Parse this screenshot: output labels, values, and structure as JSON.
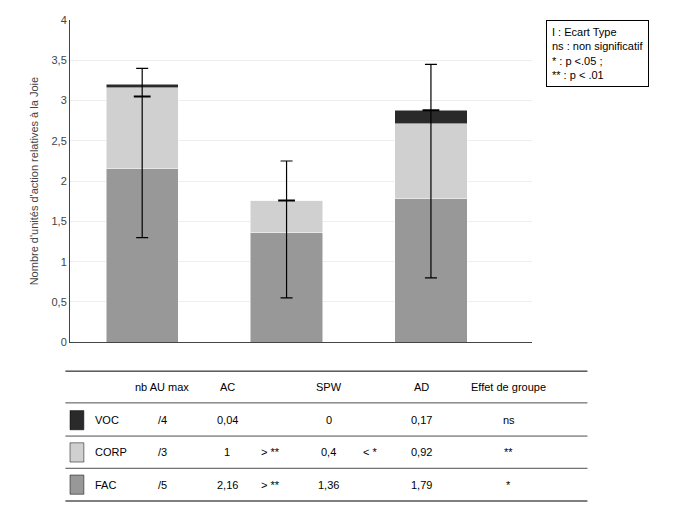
{
  "chart_data": {
    "type": "bar",
    "stacked": true,
    "categories": [
      "AC",
      "SPW",
      "AD"
    ],
    "series": [
      {
        "name": "FAC",
        "color": "#989898",
        "values": [
          2.16,
          1.36,
          1.79
        ]
      },
      {
        "name": "CORP",
        "color": "#d0d0d0",
        "values": [
          1.0,
          0.4,
          0.92
        ]
      },
      {
        "name": "VOC",
        "color": "#2a2a2a",
        "values": [
          0.04,
          0.0,
          0.17
        ]
      }
    ],
    "error_bars": [
      {
        "low": 1.3,
        "high": 3.4,
        "mid": 3.05
      },
      {
        "low": 0.55,
        "high": 2.25,
        "mid": 1.76
      },
      {
        "low": 0.8,
        "high": 3.45,
        "mid": 2.88
      }
    ],
    "ylabel": "Nombre d'unités d'action relatives à la Joie",
    "ylim": [
      0,
      4.0
    ],
    "yticks": [
      0,
      {
        "value": 0.5,
        "label": "0,5"
      },
      1,
      {
        "value": 1.5,
        "label": "1,5"
      },
      2,
      {
        "value": 2.5,
        "label": "2,5"
      },
      3,
      {
        "value": 3.5,
        "label": "3,5"
      },
      4
    ],
    "grid": true,
    "tick_labels": "y",
    "annotations": [
      "I : Ecart Type\nns : non significatif\n* : p <.05 ;\n** : p < .01"
    ],
    "table": {
      "header": [
        "nb AU max",
        "AC",
        "SPW",
        "AD",
        "Effet de groupe"
      ],
      "rows": [
        {
          "label": "VOC",
          "max": "/4",
          "AC": "0,04",
          "SPW": "0",
          "AD": "0,17",
          "effect": "ns"
        },
        {
          "label": "CORP",
          "max": "/3",
          "AC": "1",
          "AC_cmp": "> **",
          "SPW": "0,4",
          "SPW_cmp": "< *",
          "AD": "0,92",
          "effect": "**"
        },
        {
          "label": "FAC",
          "max": "/5",
          "AC": "2,16",
          "AC_cmp": "> **",
          "SPW": "1,36",
          "AD": "1,79",
          "effect": "*"
        }
      ]
    }
  }
}
